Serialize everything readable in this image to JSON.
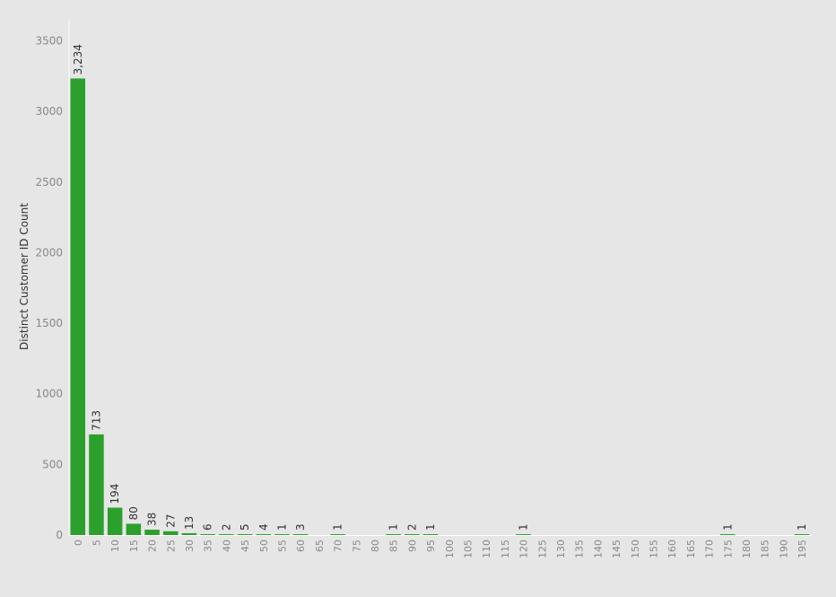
{
  "chart_data": {
    "type": "bar",
    "title": "",
    "xlabel": "",
    "ylabel": "Distinct Customer ID Count",
    "ylim": [
      0,
      3650
    ],
    "yticks": [
      0,
      500,
      1000,
      1500,
      2000,
      2500,
      3000,
      3500
    ],
    "grid": false,
    "bar_color": "#2ca02c",
    "categories": [
      "0",
      "5",
      "10",
      "15",
      "20",
      "25",
      "30",
      "35",
      "40",
      "45",
      "50",
      "55",
      "60",
      "65",
      "70",
      "75",
      "80",
      "85",
      "90",
      "95",
      "100",
      "105",
      "110",
      "115",
      "120",
      "125",
      "130",
      "135",
      "140",
      "145",
      "150",
      "155",
      "160",
      "165",
      "170",
      "175",
      "180",
      "185",
      "190",
      "195"
    ],
    "values": [
      3234,
      713,
      194,
      80,
      38,
      27,
      13,
      6,
      2,
      5,
      4,
      1,
      3,
      null,
      1,
      null,
      null,
      1,
      2,
      1,
      null,
      null,
      null,
      null,
      1,
      null,
      null,
      null,
      null,
      null,
      null,
      null,
      null,
      null,
      null,
      1,
      null,
      null,
      null,
      1
    ],
    "value_labels": [
      "3,234",
      "713",
      "194",
      "80",
      "38",
      "27",
      "13",
      "6",
      "2",
      "5",
      "4",
      "1",
      "3",
      "",
      "1",
      "",
      "",
      "1",
      "2",
      "1",
      "",
      "",
      "",
      "",
      "1",
      "",
      "",
      "",
      "",
      "",
      "",
      "",
      "",
      "",
      "",
      "1",
      "",
      "",
      "",
      "1"
    ]
  }
}
